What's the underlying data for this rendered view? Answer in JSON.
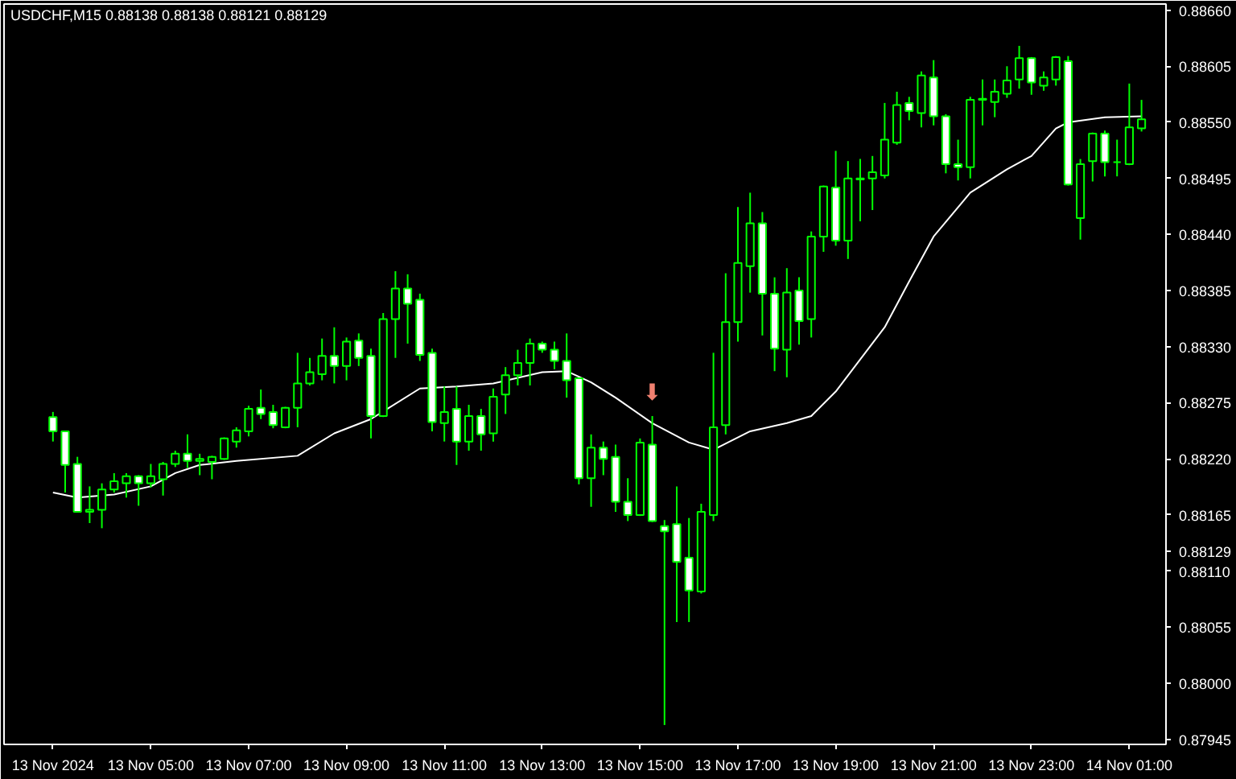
{
  "chart_data": {
    "type": "candlestick",
    "title": "USDCHF,M15  0.88138 0.88138 0.88121 0.88129",
    "x": [
      "2024-11-13T03:00",
      "2024-11-13T03:15",
      "2024-11-13T03:30",
      "2024-11-13T03:45",
      "2024-11-13T04:00",
      "2024-11-13T04:15",
      "2024-11-13T04:30",
      "2024-11-13T04:45",
      "2024-11-13T05:00",
      "2024-11-13T05:15",
      "2024-11-13T05:30",
      "2024-11-13T05:45",
      "2024-11-13T06:00",
      "2024-11-13T06:15",
      "2024-11-13T06:30",
      "2024-11-13T06:45",
      "2024-11-13T07:00",
      "2024-11-13T07:15",
      "2024-11-13T07:30",
      "2024-11-13T07:45",
      "2024-11-13T08:00",
      "2024-11-13T08:15",
      "2024-11-13T08:30",
      "2024-11-13T08:45",
      "2024-11-13T09:00",
      "2024-11-13T09:15",
      "2024-11-13T09:30",
      "2024-11-13T09:45",
      "2024-11-13T10:00",
      "2024-11-13T10:15",
      "2024-11-13T10:30",
      "2024-11-13T10:45",
      "2024-11-13T11:00",
      "2024-11-13T11:15",
      "2024-11-13T11:30",
      "2024-11-13T11:45",
      "2024-11-13T12:00",
      "2024-11-13T12:15",
      "2024-11-13T12:30",
      "2024-11-13T12:45",
      "2024-11-13T13:00",
      "2024-11-13T13:15",
      "2024-11-13T13:30",
      "2024-11-13T13:45",
      "2024-11-13T14:00",
      "2024-11-13T14:15",
      "2024-11-13T14:30",
      "2024-11-13T14:45",
      "2024-11-13T15:00",
      "2024-11-13T15:15",
      "2024-11-13T15:30",
      "2024-11-13T15:45",
      "2024-11-13T16:00",
      "2024-11-13T16:15",
      "2024-11-13T16:30",
      "2024-11-13T16:45",
      "2024-11-13T17:00",
      "2024-11-13T17:15",
      "2024-11-13T17:30",
      "2024-11-13T17:45",
      "2024-11-13T18:00",
      "2024-11-13T18:15",
      "2024-11-13T18:30",
      "2024-11-13T18:45",
      "2024-11-13T19:00",
      "2024-11-13T19:15",
      "2024-11-13T19:30",
      "2024-11-13T19:45",
      "2024-11-13T20:00",
      "2024-11-13T20:15",
      "2024-11-13T20:30",
      "2024-11-13T20:45",
      "2024-11-13T21:00",
      "2024-11-13T21:15",
      "2024-11-13T21:30",
      "2024-11-13T21:45",
      "2024-11-13T22:00",
      "2024-11-13T22:15",
      "2024-11-13T22:30",
      "2024-11-13T22:45",
      "2024-11-13T23:00",
      "2024-11-13T23:15",
      "2024-11-13T23:30",
      "2024-11-13T23:45",
      "2024-11-14T00:00",
      "2024-11-14T00:15",
      "2024-11-14T00:30",
      "2024-11-14T00:45",
      "2024-11-14T01:00",
      "2024-11-14T01:15"
    ],
    "ohlc": [
      [
        0.88261,
        0.88266,
        0.88237,
        0.88247
      ],
      [
        0.88247,
        0.88247,
        0.88187,
        0.88214
      ],
      [
        0.88215,
        0.88222,
        0.88168,
        0.88168
      ],
      [
        0.88168,
        0.88193,
        0.88157,
        0.8817
      ],
      [
        0.8817,
        0.88196,
        0.88152,
        0.8819
      ],
      [
        0.8819,
        0.88206,
        0.88187,
        0.88198
      ],
      [
        0.88196,
        0.88206,
        0.88182,
        0.88203
      ],
      [
        0.88203,
        0.88204,
        0.88174,
        0.88196
      ],
      [
        0.88196,
        0.88215,
        0.88192,
        0.88203
      ],
      [
        0.882,
        0.88217,
        0.88184,
        0.88215
      ],
      [
        0.88215,
        0.88228,
        0.88212,
        0.88225
      ],
      [
        0.88225,
        0.88244,
        0.88211,
        0.88218
      ],
      [
        0.88218,
        0.88225,
        0.88204,
        0.8822
      ],
      [
        0.88217,
        0.88223,
        0.882,
        0.88222
      ],
      [
        0.8822,
        0.88241,
        0.88219,
        0.8824
      ],
      [
        0.88237,
        0.88251,
        0.88231,
        0.88248
      ],
      [
        0.88247,
        0.88272,
        0.88242,
        0.88269
      ],
      [
        0.8827,
        0.88288,
        0.88259,
        0.88264
      ],
      [
        0.88266,
        0.88273,
        0.8825,
        0.88253
      ],
      [
        0.88251,
        0.88271,
        0.8825,
        0.8827
      ],
      [
        0.8827,
        0.88324,
        0.88251,
        0.88294
      ],
      [
        0.88294,
        0.88319,
        0.88292,
        0.88305
      ],
      [
        0.88303,
        0.88338,
        0.88297,
        0.88321
      ],
      [
        0.88321,
        0.88349,
        0.88294,
        0.88311
      ],
      [
        0.88311,
        0.88339,
        0.88297,
        0.88335
      ],
      [
        0.88336,
        0.88343,
        0.88311,
        0.88319
      ],
      [
        0.88321,
        0.88328,
        0.8824,
        0.88262
      ],
      [
        0.88262,
        0.88363,
        0.88261,
        0.88357
      ],
      [
        0.88357,
        0.88404,
        0.88319,
        0.88387
      ],
      [
        0.88387,
        0.88401,
        0.88333,
        0.88372
      ],
      [
        0.88376,
        0.88382,
        0.88316,
        0.88322
      ],
      [
        0.88324,
        0.88328,
        0.88247,
        0.88256
      ],
      [
        0.88255,
        0.88291,
        0.88237,
        0.88266
      ],
      [
        0.88269,
        0.88291,
        0.88214,
        0.88237
      ],
      [
        0.88237,
        0.88273,
        0.88228,
        0.88262
      ],
      [
        0.88262,
        0.88269,
        0.88228,
        0.88244
      ],
      [
        0.88245,
        0.88289,
        0.88237,
        0.88281
      ],
      [
        0.88283,
        0.8831,
        0.88264,
        0.88302
      ],
      [
        0.88302,
        0.88327,
        0.88292,
        0.88314
      ],
      [
        0.88314,
        0.88338,
        0.88292,
        0.88333
      ],
      [
        0.88333,
        0.88335,
        0.88324,
        0.88327
      ],
      [
        0.88327,
        0.88335,
        0.88308,
        0.88316
      ],
      [
        0.88316,
        0.88343,
        0.8828,
        0.88297
      ],
      [
        0.88299,
        0.88299,
        0.88195,
        0.88201
      ],
      [
        0.88201,
        0.88244,
        0.88173,
        0.88231
      ],
      [
        0.88231,
        0.88237,
        0.88204,
        0.8822
      ],
      [
        0.88222,
        0.88234,
        0.88168,
        0.88178
      ],
      [
        0.88178,
        0.88201,
        0.88159,
        0.88165
      ],
      [
        0.88165,
        0.8824,
        0.88164,
        0.88236
      ],
      [
        0.88234,
        0.88262,
        0.88158,
        0.88159
      ],
      [
        0.88154,
        0.8816,
        0.87959,
        0.88149
      ],
      [
        0.88156,
        0.88193,
        0.8806,
        0.88119
      ],
      [
        0.88123,
        0.88162,
        0.8806,
        0.88091
      ],
      [
        0.8809,
        0.88176,
        0.88088,
        0.88168
      ],
      [
        0.88165,
        0.88324,
        0.88159,
        0.88251
      ],
      [
        0.88253,
        0.88402,
        0.88244,
        0.88354
      ],
      [
        0.88354,
        0.88467,
        0.88335,
        0.88412
      ],
      [
        0.88409,
        0.88481,
        0.88383,
        0.88451
      ],
      [
        0.88451,
        0.88462,
        0.88341,
        0.88382
      ],
      [
        0.88382,
        0.88398,
        0.88306,
        0.88328
      ],
      [
        0.88327,
        0.88407,
        0.883,
        0.88383
      ],
      [
        0.88385,
        0.88398,
        0.88332,
        0.88355
      ],
      [
        0.88357,
        0.88443,
        0.88339,
        0.88438
      ],
      [
        0.88438,
        0.88488,
        0.88423,
        0.88487
      ],
      [
        0.88486,
        0.88522,
        0.88429,
        0.88434
      ],
      [
        0.88434,
        0.88512,
        0.88416,
        0.88495
      ],
      [
        0.88494,
        0.88514,
        0.88453,
        0.88495
      ],
      [
        0.88495,
        0.88517,
        0.88464,
        0.88501
      ],
      [
        0.88498,
        0.88569,
        0.88495,
        0.88533
      ],
      [
        0.8853,
        0.8858,
        0.88528,
        0.88567
      ],
      [
        0.88569,
        0.88575,
        0.88552,
        0.88561
      ],
      [
        0.88559,
        0.886,
        0.88545,
        0.88596
      ],
      [
        0.88594,
        0.88611,
        0.88547,
        0.88556
      ],
      [
        0.88556,
        0.88558,
        0.885,
        0.88509
      ],
      [
        0.88509,
        0.88533,
        0.88493,
        0.88506
      ],
      [
        0.88506,
        0.88575,
        0.88495,
        0.88572
      ],
      [
        0.88572,
        0.88592,
        0.88547,
        0.88573
      ],
      [
        0.8857,
        0.88592,
        0.88555,
        0.8858
      ],
      [
        0.88578,
        0.88605,
        0.88574,
        0.88591
      ],
      [
        0.88592,
        0.88625,
        0.88583,
        0.88613
      ],
      [
        0.88613,
        0.88614,
        0.88577,
        0.88589
      ],
      [
        0.88586,
        0.886,
        0.88581,
        0.88594
      ],
      [
        0.88592,
        0.88615,
        0.88586,
        0.88614
      ],
      [
        0.8861,
        0.88615,
        0.88488,
        0.88489
      ],
      [
        0.88456,
        0.88514,
        0.88435,
        0.88509
      ],
      [
        0.88512,
        0.8854,
        0.88492,
        0.88539
      ],
      [
        0.88539,
        0.88542,
        0.88497,
        0.88511
      ],
      [
        0.88511,
        0.88533,
        0.88497,
        0.88511
      ],
      [
        0.88509,
        0.88588,
        0.88508,
        0.88545
      ],
      [
        0.88544,
        0.88572,
        0.88541,
        0.88553
      ]
    ],
    "color": "#00ff00",
    "series": [
      {
        "type": "line",
        "color": "#ffffff",
        "x": [
          "2024-11-13T03:00",
          "2024-11-13T03:30",
          "2024-11-13T04:15",
          "2024-11-13T05:00",
          "2024-11-13T05:30",
          "2024-11-13T06:00",
          "2024-11-13T06:45",
          "2024-11-13T08:00",
          "2024-11-13T08:45",
          "2024-11-13T09:30",
          "2024-11-13T10:30",
          "2024-11-13T11:15",
          "2024-11-13T12:00",
          "2024-11-13T13:00",
          "2024-11-13T13:30",
          "2024-11-13T14:00",
          "2024-11-13T14:30",
          "2024-11-13T15:15",
          "2024-11-13T16:00",
          "2024-11-13T16:30",
          "2024-11-13T17:15",
          "2024-11-13T18:00",
          "2024-11-13T18:30",
          "2024-11-13T19:00",
          "2024-11-13T20:00",
          "2024-11-13T20:30",
          "2024-11-13T21:00",
          "2024-11-13T21:45",
          "2024-11-13T22:30",
          "2024-11-13T23:00",
          "2024-11-13T23:30",
          "2024-11-13T23:45",
          "2024-11-14T00:30",
          "2024-11-14T01:15"
        ],
        "values": [
          0.88187,
          0.88182,
          0.88185,
          0.88193,
          0.88206,
          0.88214,
          0.88218,
          0.88223,
          0.88245,
          0.88259,
          0.88289,
          0.88291,
          0.88294,
          0.88305,
          0.88306,
          0.88295,
          0.8828,
          0.88255,
          0.88236,
          0.88229,
          0.88247,
          0.88255,
          0.88262,
          0.88286,
          0.88349,
          0.88394,
          0.88438,
          0.88481,
          0.88504,
          0.88517,
          0.88544,
          0.8855,
          0.88555,
          0.88556
        ]
      }
    ],
    "annotations": [
      {
        "text": "⬇",
        "x": "2024-11-13T15:15",
        "y": 0.88262
      }
    ],
    "xlim": [
      "2024-11-13T02:00",
      "2024-11-14T01:45"
    ],
    "xticks": [
      {
        "value": "2024-11-13T03:00",
        "label": "13 Nov 2024"
      },
      {
        "value": "2024-11-13T05:00",
        "label": "13 Nov 05:00"
      },
      {
        "value": "2024-11-13T07:00",
        "label": "13 Nov 07:00"
      },
      {
        "value": "2024-11-13T09:00",
        "label": "13 Nov 09:00"
      },
      {
        "value": "2024-11-13T11:00",
        "label": "13 Nov 11:00"
      },
      {
        "value": "2024-11-13T13:00",
        "label": "13 Nov 13:00"
      },
      {
        "value": "2024-11-13T15:00",
        "label": "13 Nov 15:00"
      },
      {
        "value": "2024-11-13T17:00",
        "label": "13 Nov 17:00"
      },
      {
        "value": "2024-11-13T19:00",
        "label": "13 Nov 19:00"
      },
      {
        "value": "2024-11-13T21:00",
        "label": "13 Nov 21:00"
      },
      {
        "value": "2024-11-13T23:00",
        "label": "13 Nov 23:00"
      },
      {
        "value": "2024-11-14T01:00",
        "label": "14 Nov 01:00"
      }
    ],
    "ylim": [
      0.8794,
      0.88666
    ],
    "yticks": [
      {
        "value": 0.8866,
        "label": "0.88660"
      },
      0.88605,
      {
        "value": 0.8855,
        "label": "0.88550"
      },
      0.88495,
      {
        "value": 0.8844,
        "label": "0.88440"
      },
      0.88385,
      {
        "value": 0.8833,
        "label": "0.88330"
      },
      0.88275,
      {
        "value": 0.8822,
        "label": "0.88220"
      },
      0.88165,
      {
        "value": 0.88129,
        "label": "0.88129"
      },
      {
        "value": 0.8811,
        "label": "0.88110"
      },
      0.88055,
      {
        "value": 0.88,
        "label": "0.88000"
      },
      0.87945
    ]
  }
}
